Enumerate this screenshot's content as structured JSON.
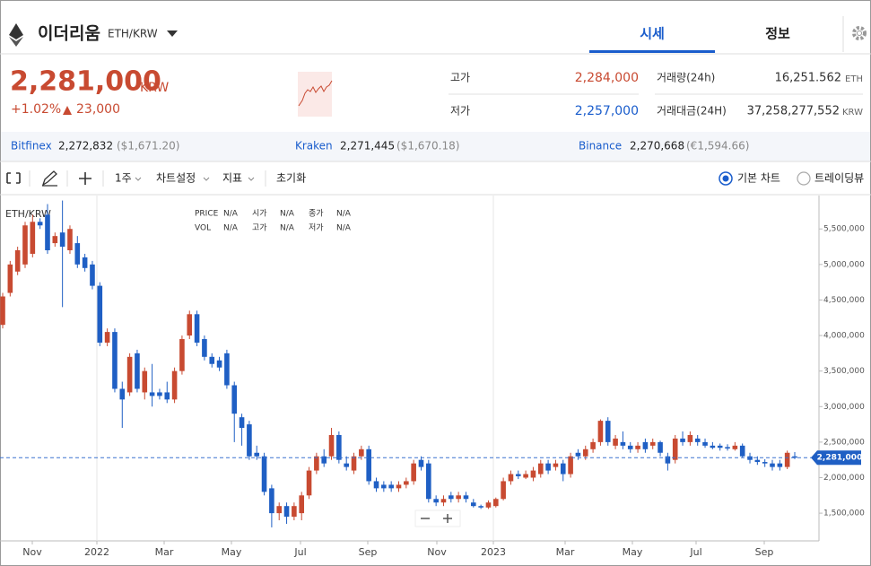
{
  "header": {
    "title": "이더리움",
    "pair": "ETH/KRW",
    "tabs": [
      "시세",
      "정보"
    ]
  },
  "price": {
    "value": "2,281,000",
    "unit": "KRW",
    "change_rate": "+1.02%",
    "change_amount": "23,000"
  },
  "stats": {
    "high_label": "고가",
    "high": "2,284,000",
    "low_label": "저가",
    "low": "2,257,000",
    "volume_label": "거래량(24h)",
    "volume": "16,251.562",
    "volume_unit": "ETH",
    "amount_label": "거래대금(24H)",
    "amount": "37,258,277,552",
    "amount_unit": "KRW"
  },
  "exchanges": [
    {
      "name": "Bitfinex",
      "price": "2,272,832",
      "fx": "($1,671.20)"
    },
    {
      "name": "Kraken",
      "price": "2,271,445",
      "fx": "($1,670.18)"
    },
    {
      "name": "Binance",
      "price": "2,270,668",
      "fx": "(€1,594.66)"
    }
  ],
  "toolbar": {
    "interval": "1주",
    "settings": "차트설정",
    "indicators": "지표",
    "reset": "초기화",
    "options": [
      "기본 차트",
      "트레이딩뷰"
    ]
  },
  "chart": {
    "type": "candlestick",
    "title": "ETH/KRW",
    "legend": [
      {
        "label": "PRICE",
        "value": "N/A"
      },
      {
        "label": "시가",
        "value": "N/A"
      },
      {
        "label": "종가",
        "value": "N/A"
      },
      {
        "label": "VOL",
        "value": "N/A"
      },
      {
        "label": "고가",
        "value": "N/A"
      },
      {
        "label": "저가",
        "value": "N/A"
      }
    ],
    "xlabels": [
      "Nov",
      "2022",
      "Mar",
      "May",
      "Jul",
      "Sep",
      "Nov",
      "2023",
      "Mar",
      "May",
      "Jul",
      "Sep"
    ],
    "ylim": [
      1110000,
      5970000
    ],
    "yticks": [
      {
        "value": 1500000,
        "label": "1,500,000"
      },
      {
        "value": 2000000,
        "label": "2,000,000"
      },
      {
        "value": 2500000,
        "label": "2,500,000"
      },
      {
        "value": 3000000,
        "label": "3,000,000"
      },
      {
        "value": 3500000,
        "label": "3,500,000"
      },
      {
        "value": 4000000,
        "label": "4,000,000"
      },
      {
        "value": 4500000,
        "label": "4,500,000"
      },
      {
        "value": 5000000,
        "label": "5,000,000"
      },
      {
        "value": 5500000,
        "label": "5,500,000"
      }
    ],
    "current": {
      "value": 2281000,
      "label": "2,281,000"
    },
    "up_color": "#c84a31",
    "down_color": "#1f5fc4",
    "candles": [
      [
        4150000,
        4600000,
        4100000,
        4550000
      ],
      [
        4600000,
        5050000,
        4550000,
        5000000
      ],
      [
        4900000,
        5250000,
        4850000,
        5200000
      ],
      [
        5000000,
        5600000,
        4950000,
        5550000
      ],
      [
        5150000,
        5700000,
        5100000,
        5600000
      ],
      [
        5600000,
        5650000,
        5500000,
        5550000
      ],
      [
        5700000,
        5850000,
        5150000,
        5200000
      ],
      [
        5300000,
        5450000,
        5250000,
        5400000
      ],
      [
        5450000,
        5900000,
        4400000,
        5250000
      ],
      [
        5200000,
        5550000,
        5150000,
        5500000
      ],
      [
        5300000,
        5400000,
        4950000,
        5000000
      ],
      [
        5100000,
        5150000,
        4900000,
        4950000
      ],
      [
        5000000,
        5050000,
        4650000,
        4700000
      ],
      [
        4700000,
        4750000,
        3850000,
        3900000
      ],
      [
        3900000,
        4100000,
        3850000,
        4050000
      ],
      [
        4050000,
        4100000,
        3200000,
        3250000
      ],
      [
        3250000,
        3350000,
        2700000,
        3100000
      ],
      [
        3200000,
        3750000,
        3150000,
        3700000
      ],
      [
        3750000,
        3800000,
        3200000,
        3250000
      ],
      [
        3200000,
        3550000,
        3100000,
        3500000
      ],
      [
        3200000,
        3600000,
        3000000,
        3150000
      ],
      [
        3200000,
        3250000,
        3100000,
        3150000
      ],
      [
        3200000,
        3350000,
        3050000,
        3100000
      ],
      [
        3100000,
        3550000,
        3050000,
        3500000
      ],
      [
        3500000,
        4000000,
        3450000,
        3950000
      ],
      [
        4000000,
        4350000,
        3950000,
        4300000
      ],
      [
        4300000,
        4350000,
        3850000,
        3900000
      ],
      [
        3950000,
        4000000,
        3650000,
        3700000
      ],
      [
        3700000,
        3750000,
        3550000,
        3600000
      ],
      [
        3650000,
        3700000,
        3500000,
        3550000
      ],
      [
        3750000,
        3800000,
        3250000,
        3300000
      ],
      [
        3300000,
        3350000,
        2500000,
        2900000
      ],
      [
        2850000,
        2900000,
        2450000,
        2700000
      ],
      [
        2750000,
        2800000,
        2250000,
        2300000
      ],
      [
        2350000,
        2450000,
        2250000,
        2300000
      ],
      [
        2300000,
        2350000,
        1750000,
        1800000
      ],
      [
        1850000,
        1900000,
        1300000,
        1500000
      ],
      [
        1500000,
        1650000,
        1400000,
        1600000
      ],
      [
        1600000,
        1650000,
        1350000,
        1450000
      ],
      [
        1450000,
        1650000,
        1400000,
        1600000
      ],
      [
        1500000,
        1800000,
        1400000,
        1750000
      ],
      [
        1750000,
        2150000,
        1700000,
        2100000
      ],
      [
        2100000,
        2350000,
        2050000,
        2300000
      ],
      [
        2300000,
        2400000,
        2150000,
        2200000
      ],
      [
        2300000,
        2700000,
        2250000,
        2600000
      ],
      [
        2600000,
        2650000,
        2200000,
        2250000
      ],
      [
        2200000,
        2300000,
        2100000,
        2150000
      ],
      [
        2100000,
        2350000,
        2050000,
        2300000
      ],
      [
        2300000,
        2450000,
        2250000,
        2400000
      ],
      [
        2400000,
        2450000,
        1900000,
        1950000
      ],
      [
        1950000,
        2000000,
        1800000,
        1850000
      ],
      [
        1900000,
        1950000,
        1800000,
        1850000
      ],
      [
        1900000,
        1950000,
        1800000,
        1850000
      ],
      [
        1850000,
        1950000,
        1800000,
        1900000
      ],
      [
        1900000,
        2000000,
        1850000,
        1950000
      ],
      [
        1950000,
        2250000,
        1900000,
        2200000
      ],
      [
        2250000,
        2300000,
        2100000,
        2150000
      ],
      [
        2200000,
        2250000,
        1650000,
        1700000
      ],
      [
        1700000,
        1750000,
        1600000,
        1650000
      ],
      [
        1650000,
        1750000,
        1600000,
        1700000
      ],
      [
        1750000,
        1800000,
        1650000,
        1700000
      ],
      [
        1700000,
        1800000,
        1650000,
        1750000
      ],
      [
        1750000,
        1800000,
        1650000,
        1700000
      ],
      [
        1650000,
        1700000,
        1580000,
        1600000
      ],
      [
        1600000,
        1620000,
        1560000,
        1580000
      ],
      [
        1580000,
        1680000,
        1560000,
        1650000
      ],
      [
        1600000,
        1720000,
        1580000,
        1700000
      ],
      [
        1700000,
        2000000,
        1680000,
        1950000
      ],
      [
        1950000,
        2100000,
        1900000,
        2050000
      ],
      [
        2050000,
        2100000,
        1980000,
        2020000
      ],
      [
        2000000,
        2100000,
        1980000,
        2050000
      ],
      [
        2000000,
        2150000,
        1950000,
        2100000
      ],
      [
        2050000,
        2250000,
        2000000,
        2200000
      ],
      [
        2200000,
        2250000,
        2050000,
        2100000
      ],
      [
        2150000,
        2250000,
        2100000,
        2200000
      ],
      [
        2200000,
        2250000,
        1950000,
        2050000
      ],
      [
        2050000,
        2350000,
        2000000,
        2300000
      ],
      [
        2350000,
        2400000,
        2250000,
        2300000
      ],
      [
        2300000,
        2450000,
        2250000,
        2400000
      ],
      [
        2400000,
        2550000,
        2350000,
        2500000
      ],
      [
        2500000,
        2820000,
        2450000,
        2800000
      ],
      [
        2800000,
        2850000,
        2450000,
        2500000
      ],
      [
        2450000,
        2600000,
        2400000,
        2550000
      ],
      [
        2500000,
        2650000,
        2400000,
        2450000
      ],
      [
        2450000,
        2500000,
        2350000,
        2400000
      ],
      [
        2400000,
        2500000,
        2350000,
        2450000
      ],
      [
        2500000,
        2550000,
        2350000,
        2400000
      ],
      [
        2450000,
        2550000,
        2400000,
        2500000
      ],
      [
        2500000,
        2520000,
        2300000,
        2350000
      ],
      [
        2300000,
        2350000,
        2100000,
        2200000
      ],
      [
        2250000,
        2600000,
        2200000,
        2550000
      ],
      [
        2550000,
        2650000,
        2450000,
        2500000
      ],
      [
        2500000,
        2650000,
        2450000,
        2600000
      ],
      [
        2550000,
        2600000,
        2450000,
        2500000
      ],
      [
        2500000,
        2550000,
        2420000,
        2450000
      ],
      [
        2450000,
        2500000,
        2400000,
        2420000
      ],
      [
        2450000,
        2480000,
        2380000,
        2420000
      ],
      [
        2430000,
        2470000,
        2380000,
        2410000
      ],
      [
        2400000,
        2500000,
        2380000,
        2450000
      ],
      [
        2450000,
        2480000,
        2280000,
        2300000
      ],
      [
        2300000,
        2350000,
        2200000,
        2250000
      ],
      [
        2250000,
        2300000,
        2180000,
        2220000
      ],
      [
        2220000,
        2260000,
        2150000,
        2200000
      ],
      [
        2200000,
        2250000,
        2100000,
        2150000
      ],
      [
        2200000,
        2250000,
        2100000,
        2150000
      ],
      [
        2150000,
        2380000,
        2120000,
        2350000
      ],
      [
        2300000,
        2360000,
        2260000,
        2281000
      ]
    ]
  }
}
